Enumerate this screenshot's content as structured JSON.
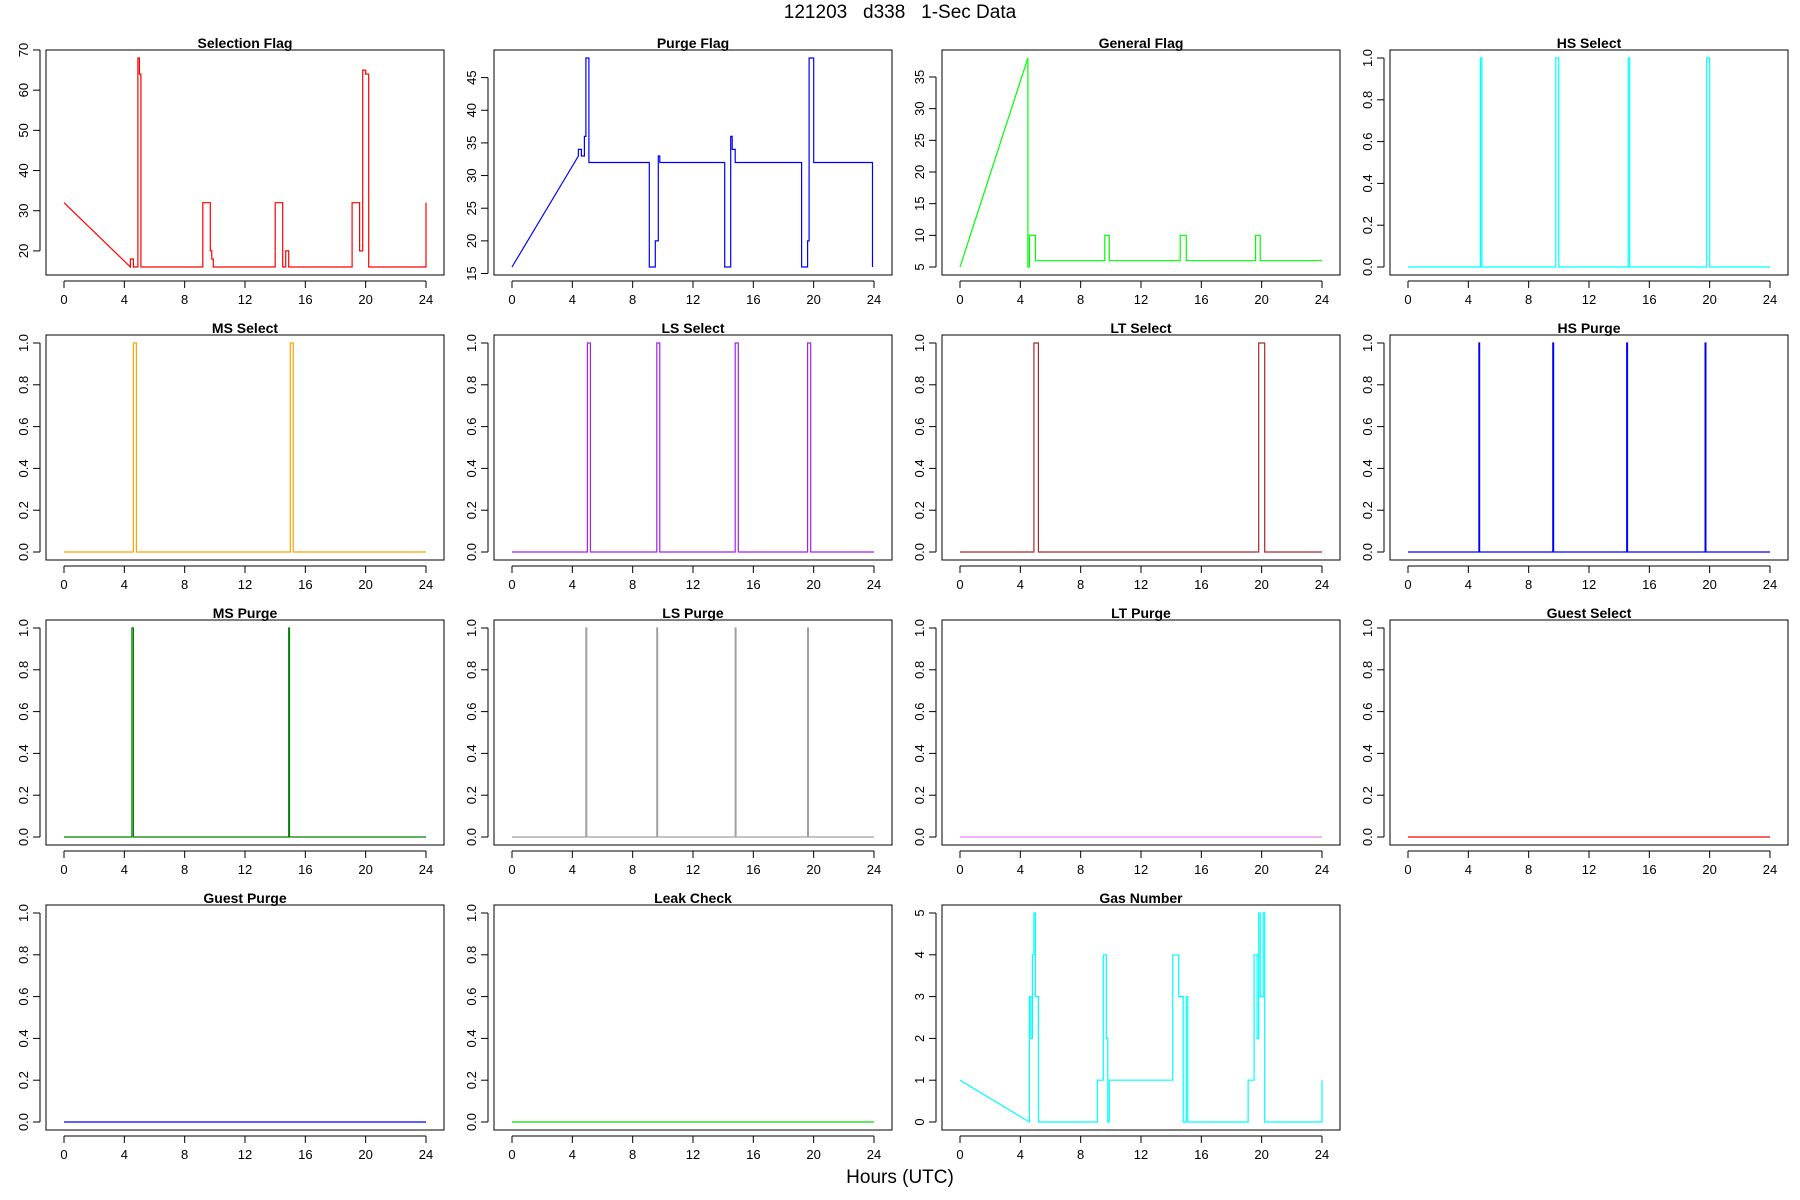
{
  "figure": {
    "title": "121203   d338   1-Sec Data",
    "xlabel": "Hours (UTC)"
  },
  "chart_data": [
    {
      "type": "line",
      "title": "Selection Flag",
      "color": "#ff0000",
      "xlim": [
        0,
        24
      ],
      "ylim": [
        16,
        68
      ],
      "yticks": [
        20,
        30,
        40,
        50,
        60,
        70
      ],
      "xticks": [
        0,
        4,
        8,
        12,
        16,
        20,
        24
      ],
      "series": [
        {
          "x": [
            0,
            4.4,
            4.4,
            4.6,
            4.6,
            4.9,
            4.9,
            5.0,
            5.0,
            5.1,
            5.1,
            9.2,
            9.2,
            9.7,
            9.7,
            9.8,
            9.8,
            9.9,
            9.9,
            14.0,
            14.0,
            14.5,
            14.5,
            14.7,
            14.7,
            14.9,
            14.9,
            19.1,
            19.1,
            19.6,
            19.6,
            19.8,
            19.8,
            20.0,
            20.0,
            20.2,
            20.2,
            24,
            24
          ],
          "y": [
            32,
            16,
            18,
            18,
            16,
            16,
            68,
            68,
            64,
            64,
            16,
            16,
            32,
            32,
            20,
            20,
            18,
            18,
            16,
            16,
            32,
            32,
            16,
            16,
            20,
            20,
            16,
            16,
            32,
            32,
            20,
            20,
            65,
            65,
            64,
            64,
            16,
            16,
            32
          ]
        }
      ]
    },
    {
      "type": "line",
      "title": "Purge Flag",
      "color": "#0000ff",
      "xlim": [
        0,
        24
      ],
      "ylim": [
        16,
        48
      ],
      "yticks": [
        15,
        20,
        25,
        30,
        35,
        40,
        45
      ],
      "xticks": [
        0,
        4,
        8,
        12,
        16,
        20,
        24
      ],
      "series": [
        {
          "x": [
            0,
            4.4,
            4.4,
            4.6,
            4.6,
            4.8,
            4.8,
            4.9,
            4.9,
            5.1,
            5.1,
            9.1,
            9.1,
            9.5,
            9.5,
            9.7,
            9.7,
            9.8,
            9.8,
            14.1,
            14.1,
            14.5,
            14.5,
            14.6,
            14.6,
            14.8,
            14.8,
            19.2,
            19.2,
            19.6,
            19.6,
            19.7,
            19.7,
            20.0,
            20.0,
            23.9,
            23.9
          ],
          "y": [
            16,
            33,
            34,
            34,
            33,
            33,
            36,
            36,
            48,
            48,
            32,
            32,
            16,
            16,
            20,
            20,
            33,
            33,
            32,
            32,
            16,
            16,
            36,
            36,
            34,
            34,
            32,
            32,
            16,
            16,
            20,
            20,
            48,
            48,
            32,
            32,
            16
          ]
        }
      ]
    },
    {
      "type": "line",
      "title": "General Flag",
      "color": "#00ff00",
      "xlim": [
        0,
        24
      ],
      "ylim": [
        5,
        38
      ],
      "yticks": [
        5,
        10,
        15,
        20,
        25,
        30,
        35
      ],
      "xticks": [
        0,
        4,
        8,
        12,
        16,
        20,
        24
      ],
      "series": [
        {
          "x": [
            0,
            4.5,
            4.5,
            4.6,
            4.6,
            5.0,
            5.0,
            9.6,
            9.6,
            9.9,
            9.9,
            14.6,
            14.6,
            15.0,
            15.0,
            19.6,
            19.6,
            19.9,
            19.9,
            24
          ],
          "y": [
            5,
            38,
            5,
            5,
            10,
            10,
            6,
            6,
            10,
            10,
            6,
            6,
            10,
            10,
            6,
            6,
            10,
            10,
            6,
            6
          ]
        }
      ]
    },
    {
      "type": "line",
      "title": "HS Select",
      "color": "#00ffff",
      "xlim": [
        0,
        24
      ],
      "ylim": [
        0,
        1
      ],
      "yticks": [
        0.0,
        0.2,
        0.4,
        0.6,
        0.8,
        1.0
      ],
      "xticks": [
        0,
        4,
        8,
        12,
        16,
        20,
        24
      ],
      "series": [
        {
          "x": [
            0,
            4.8,
            4.8,
            4.9,
            4.9,
            9.8,
            9.8,
            10.0,
            10.0,
            14.6,
            14.6,
            14.7,
            14.7,
            19.8,
            19.8,
            20.0,
            20.0,
            24
          ],
          "y": [
            0,
            0,
            1,
            1,
            0,
            0,
            1,
            1,
            0,
            0,
            1,
            1,
            0,
            0,
            1,
            1,
            0,
            0
          ]
        }
      ]
    },
    {
      "type": "line",
      "title": "MS Select",
      "color": "#ffa500",
      "xlim": [
        0,
        24
      ],
      "ylim": [
        0,
        1
      ],
      "yticks": [
        0.0,
        0.2,
        0.4,
        0.6,
        0.8,
        1.0
      ],
      "xticks": [
        0,
        4,
        8,
        12,
        16,
        20,
        24
      ],
      "series": [
        {
          "x": [
            0,
            4.6,
            4.6,
            4.8,
            4.8,
            15.0,
            15.0,
            15.2,
            15.2,
            24
          ],
          "y": [
            0,
            0,
            1,
            1,
            0,
            0,
            1,
            1,
            0,
            0
          ]
        }
      ]
    },
    {
      "type": "line",
      "title": "LS Select",
      "color": "#a020f0",
      "xlim": [
        0,
        24
      ],
      "ylim": [
        0,
        1
      ],
      "yticks": [
        0.0,
        0.2,
        0.4,
        0.6,
        0.8,
        1.0
      ],
      "xticks": [
        0,
        4,
        8,
        12,
        16,
        20,
        24
      ],
      "series": [
        {
          "x": [
            0,
            5.0,
            5.0,
            5.2,
            5.2,
            9.6,
            9.6,
            9.8,
            9.8,
            14.8,
            14.8,
            15.0,
            15.0,
            19.6,
            19.6,
            19.8,
            19.8,
            24
          ],
          "y": [
            0,
            0,
            1,
            1,
            0,
            0,
            1,
            1,
            0,
            0,
            1,
            1,
            0,
            0,
            1,
            1,
            0,
            0
          ]
        }
      ]
    },
    {
      "type": "line",
      "title": "LT Select",
      "color": "#a52a2a",
      "xlim": [
        0,
        24
      ],
      "ylim": [
        0,
        1
      ],
      "yticks": [
        0.0,
        0.2,
        0.4,
        0.6,
        0.8,
        1.0
      ],
      "xticks": [
        0,
        4,
        8,
        12,
        16,
        20,
        24
      ],
      "series": [
        {
          "x": [
            0,
            4.9,
            4.9,
            5.2,
            5.2,
            19.8,
            19.8,
            20.2,
            20.2,
            24
          ],
          "y": [
            0,
            0,
            1,
            1,
            0,
            0,
            1,
            1,
            0,
            0
          ]
        }
      ]
    },
    {
      "type": "line",
      "title": "HS Purge",
      "color": "#0000ff",
      "xlim": [
        0,
        24
      ],
      "ylim": [
        0,
        1
      ],
      "yticks": [
        0.0,
        0.2,
        0.4,
        0.6,
        0.8,
        1.0
      ],
      "xticks": [
        0,
        4,
        8,
        12,
        16,
        20,
        24
      ],
      "series": [
        {
          "x": [
            0,
            4.7,
            4.7,
            4.75,
            4.75,
            9.6,
            9.6,
            9.65,
            9.65,
            14.5,
            14.5,
            14.55,
            14.55,
            19.7,
            19.7,
            19.75,
            19.75,
            24
          ],
          "y": [
            0,
            0,
            1,
            1,
            0,
            0,
            1,
            1,
            0,
            0,
            1,
            1,
            0,
            0,
            1,
            1,
            0,
            0
          ]
        }
      ]
    },
    {
      "type": "line",
      "title": "MS Purge",
      "color": "#008000",
      "xlim": [
        0,
        24
      ],
      "ylim": [
        0,
        1
      ],
      "yticks": [
        0.0,
        0.2,
        0.4,
        0.6,
        0.8,
        1.0
      ],
      "xticks": [
        0,
        4,
        8,
        12,
        16,
        20,
        24
      ],
      "series": [
        {
          "x": [
            0,
            4.5,
            4.5,
            4.6,
            4.6,
            14.9,
            14.9,
            14.95,
            14.95,
            24
          ],
          "y": [
            0,
            0,
            1,
            1,
            0,
            0,
            1,
            1,
            0,
            0
          ]
        }
      ]
    },
    {
      "type": "line",
      "title": "LS Purge",
      "color": "#a0a0a0",
      "xlim": [
        0,
        24
      ],
      "ylim": [
        0,
        1
      ],
      "yticks": [
        0.0,
        0.2,
        0.4,
        0.6,
        0.8,
        1.0
      ],
      "xticks": [
        0,
        4,
        8,
        12,
        16,
        20,
        24
      ],
      "series": [
        {
          "x": [
            0,
            4.9,
            4.9,
            4.95,
            4.95,
            9.6,
            9.6,
            9.65,
            9.65,
            14.8,
            14.8,
            14.85,
            14.85,
            19.6,
            19.6,
            19.65,
            19.65,
            24
          ],
          "y": [
            0,
            0,
            1,
            1,
            0,
            0,
            1,
            1,
            0,
            0,
            1,
            1,
            0,
            0,
            1,
            1,
            0,
            0
          ]
        }
      ]
    },
    {
      "type": "line",
      "title": "LT Purge",
      "color": "#ee82ee",
      "xlim": [
        0,
        24
      ],
      "ylim": [
        0,
        1
      ],
      "yticks": [
        0.0,
        0.2,
        0.4,
        0.6,
        0.8,
        1.0
      ],
      "xticks": [
        0,
        4,
        8,
        12,
        16,
        20,
        24
      ],
      "series": [
        {
          "x": [
            0,
            24
          ],
          "y": [
            0,
            0
          ]
        }
      ]
    },
    {
      "type": "line",
      "title": "Guest Select",
      "color": "#ff0000",
      "xlim": [
        0,
        24
      ],
      "ylim": [
        0,
        1
      ],
      "yticks": [
        0.0,
        0.2,
        0.4,
        0.6,
        0.8,
        1.0
      ],
      "xticks": [
        0,
        4,
        8,
        12,
        16,
        20,
        24
      ],
      "series": [
        {
          "x": [
            0,
            24
          ],
          "y": [
            0,
            0
          ]
        }
      ]
    },
    {
      "type": "line",
      "title": "Guest Purge",
      "color": "#0000ff",
      "xlim": [
        0,
        24
      ],
      "ylim": [
        0,
        1
      ],
      "yticks": [
        0.0,
        0.2,
        0.4,
        0.6,
        0.8,
        1.0
      ],
      "xticks": [
        0,
        4,
        8,
        12,
        16,
        20,
        24
      ],
      "series": [
        {
          "x": [
            0,
            24
          ],
          "y": [
            0,
            0
          ]
        }
      ]
    },
    {
      "type": "line",
      "title": "Leak Check",
      "color": "#00dd00",
      "xlim": [
        0,
        24
      ],
      "ylim": [
        0,
        1
      ],
      "yticks": [
        0.0,
        0.2,
        0.4,
        0.6,
        0.8,
        1.0
      ],
      "xticks": [
        0,
        4,
        8,
        12,
        16,
        20,
        24
      ],
      "series": [
        {
          "x": [
            0,
            24
          ],
          "y": [
            0,
            0
          ]
        }
      ]
    },
    {
      "type": "line",
      "title": "Gas Number",
      "color": "#00ffff",
      "xlim": [
        0,
        24
      ],
      "ylim": [
        0,
        5
      ],
      "yticks": [
        0,
        1,
        2,
        3,
        4,
        5
      ],
      "xticks": [
        0,
        4,
        8,
        12,
        16,
        20,
        24
      ],
      "series": [
        {
          "x": [
            0,
            4.6,
            4.6,
            4.7,
            4.7,
            4.8,
            4.8,
            4.9,
            4.9,
            5.0,
            5.0,
            5.2,
            5.2,
            9.1,
            9.1,
            9.5,
            9.5,
            9.7,
            9.7,
            9.8,
            9.8,
            9.9,
            9.9,
            14.1,
            14.1,
            14.5,
            14.5,
            14.8,
            14.8,
            15.0,
            15.0,
            15.1,
            15.1,
            19.1,
            19.1,
            19.5,
            19.5,
            19.7,
            19.7,
            19.8,
            19.8,
            19.9,
            19.9,
            20.1,
            20.1,
            20.2,
            20.2,
            24,
            24
          ],
          "y": [
            1,
            0,
            3,
            3,
            2,
            2,
            4,
            4,
            5,
            5,
            3,
            3,
            0,
            0,
            1,
            1,
            4,
            4,
            2,
            2,
            0,
            0,
            1,
            1,
            4,
            4,
            3,
            3,
            0,
            0,
            3,
            3,
            0,
            0,
            1,
            1,
            4,
            4,
            2,
            2,
            5,
            5,
            3,
            3,
            5,
            5,
            0,
            0,
            1
          ]
        }
      ]
    }
  ]
}
